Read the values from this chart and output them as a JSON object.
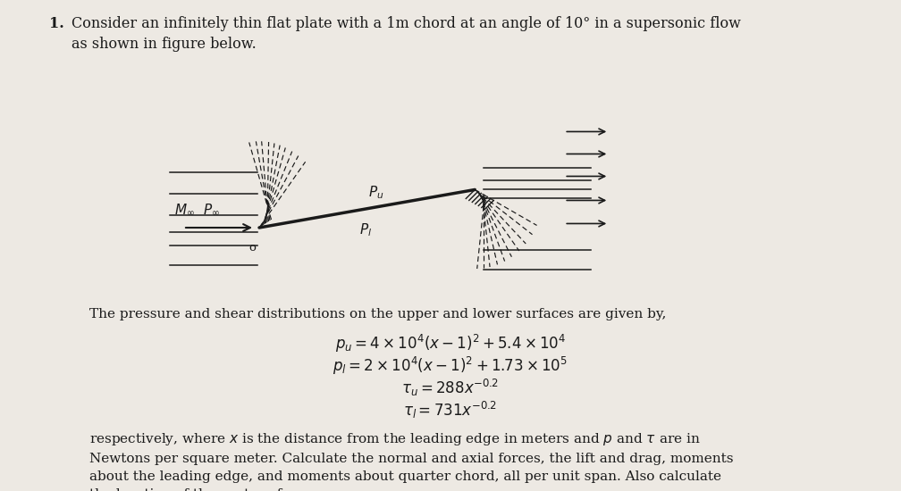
{
  "background_color": "#ede9e3",
  "title_num": "1.",
  "title_text": "Consider an infinitely thin flat plate with a 1m chord at an angle of 10° in a supersonic flow\nas shown in figure below.",
  "intro_text": "The pressure and shear distributions on the upper and lower surfaces are given by,",
  "eq1": "$p_u = 4 \\times 10^4(x-1)^2 + 5.4 \\times 10^4$",
  "eq2": "$p_l = 2 \\times 10^4(x-1)^2 + 1.73 \\times 10^5$",
  "eq3": "$\\tau_u = 288x^{-0.2}$",
  "eq4": "$\\tau_l = 731x^{-0.2}$",
  "body_text": "respectively, where $x$ is the distance from the leading edge in meters and $p$ and $\\tau$ are in\nNewtons per square meter. Calculate the normal and axial forces, the lift and drag, moments\nabout the leading edge, and moments about quarter chord, all per unit span. Also calculate\nthe location of the center of pressure.",
  "label_Moo": "$M_\\infty$",
  "label_Poo": "$P_\\infty$",
  "label_Pu": "$P_u$",
  "label_Pl": "$P_l$",
  "label_o": "o",
  "text_color": "#1a1a1a",
  "line_color": "#1a1a1a"
}
